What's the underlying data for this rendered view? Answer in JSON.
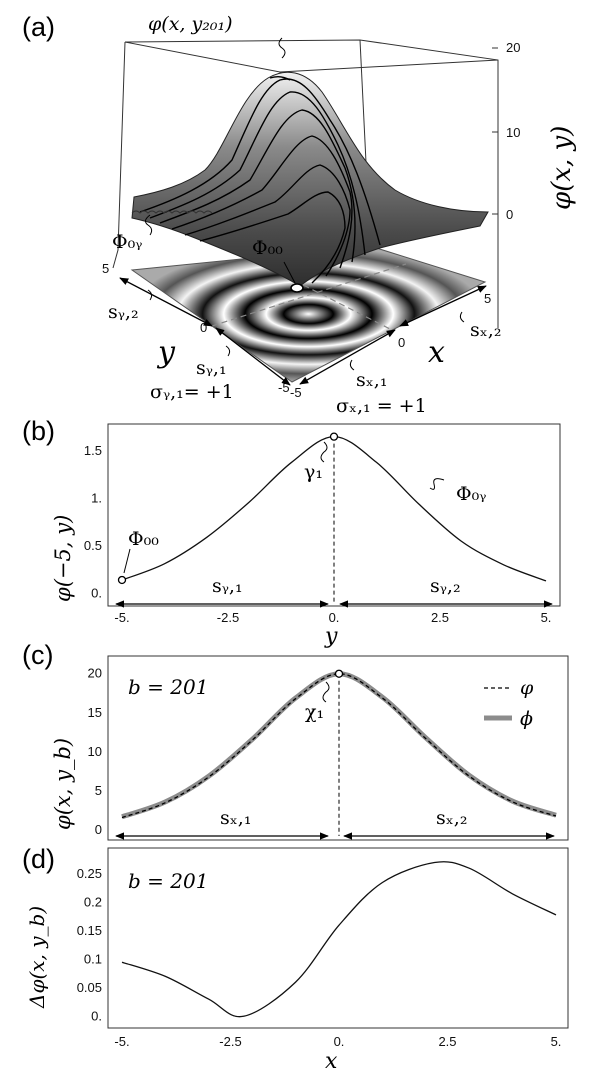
{
  "panels": {
    "a": {
      "label": "(a)",
      "z_ticks": [
        "20",
        "10",
        "0"
      ],
      "y_ticks": [
        "5",
        "0",
        "-5"
      ],
      "x_ticks": [
        "-5",
        "0",
        "5"
      ],
      "z_label": "φ(x, y)",
      "x_label": "x",
      "y_label": "y",
      "annotations": {
        "top_curve": "φ(x, y₂₀₁)",
        "phi0y": "Φ₀ᵧ",
        "phi00": "Φ₀₀",
        "sy2": "sᵧ,₂",
        "sy1": "sᵧ,₁",
        "sx2": "sₓ,₂",
        "sx1": "sₓ,₁",
        "sigma_y": "σᵧ,₁= +1",
        "sigma_x": "σₓ,₁ = +1"
      }
    },
    "b": {
      "label": "(b)",
      "x_label": "y",
      "y_label": "φ(−5, y)",
      "annotations": {
        "gamma": "γ₁",
        "phi0y": "Φ₀ᵧ",
        "phi00": "Φ₀₀",
        "s1": "sᵧ,₁",
        "s2": "sᵧ,₂"
      }
    },
    "c": {
      "label": "(c)",
      "y_label": "φ(x, y_b)",
      "inset": "b = 201",
      "annotations": {
        "chi": "χ₁",
        "s1": "sₓ,₁",
        "s2": "sₓ,₂"
      },
      "legend": [
        {
          "label": "φ",
          "style": "dashed"
        },
        {
          "label": "ϕ",
          "style": "thick-gray"
        }
      ]
    },
    "d": {
      "label": "(d)",
      "x_label": "x",
      "y_label": "Δφ(x, y_b)",
      "inset": "b = 201"
    }
  },
  "chart_data": [
    {
      "panel": "b",
      "type": "line",
      "x_ticks": [
        "-5.",
        "-2.5",
        "0.",
        "2.5",
        "5."
      ],
      "y_ticks": [
        "0.",
        "0.5",
        "1.",
        "1.5"
      ],
      "xlim": [
        -5,
        5
      ],
      "ylim": [
        -0.05,
        1.72
      ],
      "x": [
        -5,
        -4,
        -3,
        -2,
        -1,
        0,
        1,
        2,
        3,
        4,
        5
      ],
      "y": [
        0.14,
        0.31,
        0.59,
        0.96,
        1.38,
        1.65,
        1.38,
        0.94,
        0.55,
        0.3,
        0.13
      ]
    },
    {
      "panel": "c",
      "type": "line",
      "x_ticks": [
        "-5.",
        "-2.5",
        "0.",
        "2.5",
        "5."
      ],
      "y_ticks": [
        "0",
        "5",
        "10",
        "15",
        "20"
      ],
      "xlim": [
        -5,
        5
      ],
      "ylim": [
        -0.5,
        21.5
      ],
      "x": [
        -5,
        -4,
        -3,
        -2,
        -1,
        0,
        1,
        2,
        3,
        4,
        5
      ],
      "series": [
        {
          "name": "φ",
          "y": [
            1.6,
            3.5,
            6.8,
            11.5,
            16.8,
            20.0,
            16.9,
            11.7,
            6.9,
            3.6,
            1.8
          ]
        },
        {
          "name": "ϕ",
          "y": [
            1.7,
            3.6,
            6.9,
            11.6,
            16.9,
            20.0,
            17.0,
            11.8,
            7.0,
            3.7,
            1.9
          ]
        }
      ]
    },
    {
      "panel": "d",
      "type": "line",
      "x_ticks": [
        "-5.",
        "-2.5",
        "0.",
        "2.5",
        "5."
      ],
      "y_ticks": [
        "0.",
        "0.05",
        "0.1",
        "0.15",
        "0.2",
        "0.25"
      ],
      "xlim": [
        -5,
        5
      ],
      "ylim": [
        -0.01,
        0.285
      ],
      "x": [
        -5,
        -4,
        -3,
        -2.2,
        -1,
        0,
        1,
        2.2,
        3,
        4,
        5
      ],
      "y": [
        0.095,
        0.07,
        0.03,
        0.0,
        0.06,
        0.16,
        0.235,
        0.27,
        0.26,
        0.215,
        0.178
      ]
    }
  ]
}
